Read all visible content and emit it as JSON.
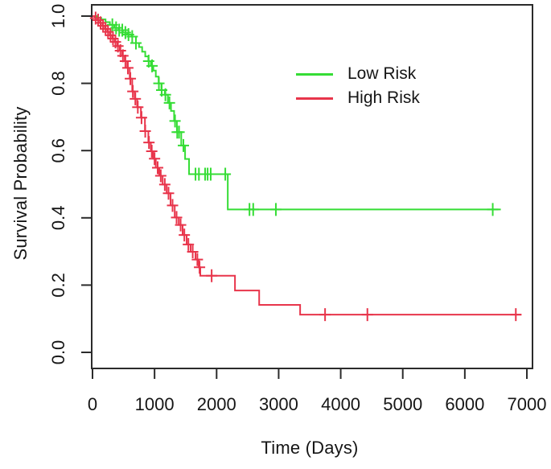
{
  "figure": {
    "background": "#ffffff",
    "axis_color": "#2b2b2b",
    "text_color": "#161616"
  },
  "chart_data": {
    "type": "line",
    "subtype": "kaplan-meier-step-curves",
    "title": "",
    "xlabel": "Time (Days)",
    "ylabel": "Survival Probability",
    "xlim": [
      0,
      7000
    ],
    "ylim": [
      0.0,
      1.0
    ],
    "grid": false,
    "x_ticks": [
      0,
      1000,
      2000,
      3000,
      4000,
      5000,
      6000,
      7000
    ],
    "x_tick_labels": [
      "0",
      "1000",
      "2000",
      "3000",
      "4000",
      "5000",
      "6000",
      "7000"
    ],
    "y_ticks": [
      0.0,
      0.2,
      0.4,
      0.6,
      0.8,
      1.0
    ],
    "y_tick_labels": [
      "0.0",
      "0.2",
      "0.4",
      "0.6",
      "0.8",
      "1.0"
    ],
    "legend": {
      "position": "inside-top-right",
      "entries": [
        {
          "name": "Low Risk",
          "color": "#35DD35"
        },
        {
          "name": "High Risk",
          "color": "#E8354B"
        }
      ]
    },
    "series": [
      {
        "name": "Low Risk",
        "color": "#35DD35",
        "steps": [
          [
            0,
            1.0
          ],
          [
            70,
            0.995
          ],
          [
            140,
            0.99
          ],
          [
            210,
            0.982
          ],
          [
            280,
            0.974
          ],
          [
            350,
            0.965
          ],
          [
            420,
            0.958
          ],
          [
            490,
            0.951
          ],
          [
            560,
            0.945
          ],
          [
            630,
            0.939
          ],
          [
            700,
            0.92
          ],
          [
            750,
            0.908
          ],
          [
            800,
            0.894
          ],
          [
            850,
            0.88
          ],
          [
            900,
            0.866
          ],
          [
            940,
            0.852
          ],
          [
            980,
            0.838
          ],
          [
            1020,
            0.82
          ],
          [
            1065,
            0.8
          ],
          [
            1110,
            0.78
          ],
          [
            1165,
            0.766
          ],
          [
            1215,
            0.742
          ],
          [
            1265,
            0.718
          ],
          [
            1315,
            0.688
          ],
          [
            1360,
            0.655
          ],
          [
            1430,
            0.615
          ],
          [
            1492,
            0.575
          ],
          [
            1556,
            0.53
          ],
          [
            2180,
            0.425
          ]
        ],
        "end_time": 6580,
        "censor_times": [
          320,
          380,
          430,
          480,
          530,
          580,
          640,
          700,
          905,
          960,
          1070,
          1115,
          1175,
          1240,
          1330,
          1365,
          1395,
          1465,
          1660,
          1715,
          1815,
          1855,
          1905,
          2140,
          2530,
          2590,
          2955,
          6450
        ]
      },
      {
        "name": "High Risk",
        "color": "#E8354B",
        "steps": [
          [
            0,
            1.0
          ],
          [
            40,
            0.994
          ],
          [
            80,
            0.988
          ],
          [
            120,
            0.98
          ],
          [
            160,
            0.971
          ],
          [
            200,
            0.962
          ],
          [
            240,
            0.953
          ],
          [
            280,
            0.943
          ],
          [
            320,
            0.933
          ],
          [
            360,
            0.923
          ],
          [
            400,
            0.911
          ],
          [
            440,
            0.897
          ],
          [
            480,
            0.882
          ],
          [
            520,
            0.866
          ],
          [
            560,
            0.846
          ],
          [
            600,
            0.814
          ],
          [
            640,
            0.776
          ],
          [
            680,
            0.754
          ],
          [
            720,
            0.729
          ],
          [
            780,
            0.698
          ],
          [
            845,
            0.658
          ],
          [
            900,
            0.624
          ],
          [
            940,
            0.598
          ],
          [
            977,
            0.576
          ],
          [
            1020,
            0.549
          ],
          [
            1076,
            0.525
          ],
          [
            1130,
            0.499
          ],
          [
            1195,
            0.473
          ],
          [
            1258,
            0.437
          ],
          [
            1325,
            0.401
          ],
          [
            1390,
            0.379
          ],
          [
            1452,
            0.349
          ],
          [
            1517,
            0.321
          ],
          [
            1582,
            0.299
          ],
          [
            1660,
            0.276
          ],
          [
            1712,
            0.253
          ],
          [
            1737,
            0.228
          ],
          [
            2296,
            0.184
          ],
          [
            2686,
            0.141
          ],
          [
            3346,
            0.112
          ]
        ],
        "end_time": 6913,
        "censor_times": [
          50,
          90,
          130,
          170,
          210,
          250,
          290,
          330,
          370,
          410,
          450,
          490,
          530,
          570,
          610,
          650,
          690,
          730,
          790,
          850,
          910,
          955,
          1000,
          1050,
          1100,
          1165,
          1225,
          1290,
          1355,
          1420,
          1480,
          1545,
          1615,
          1690,
          1725,
          1920,
          3748,
          4430,
          6822
        ]
      }
    ]
  }
}
